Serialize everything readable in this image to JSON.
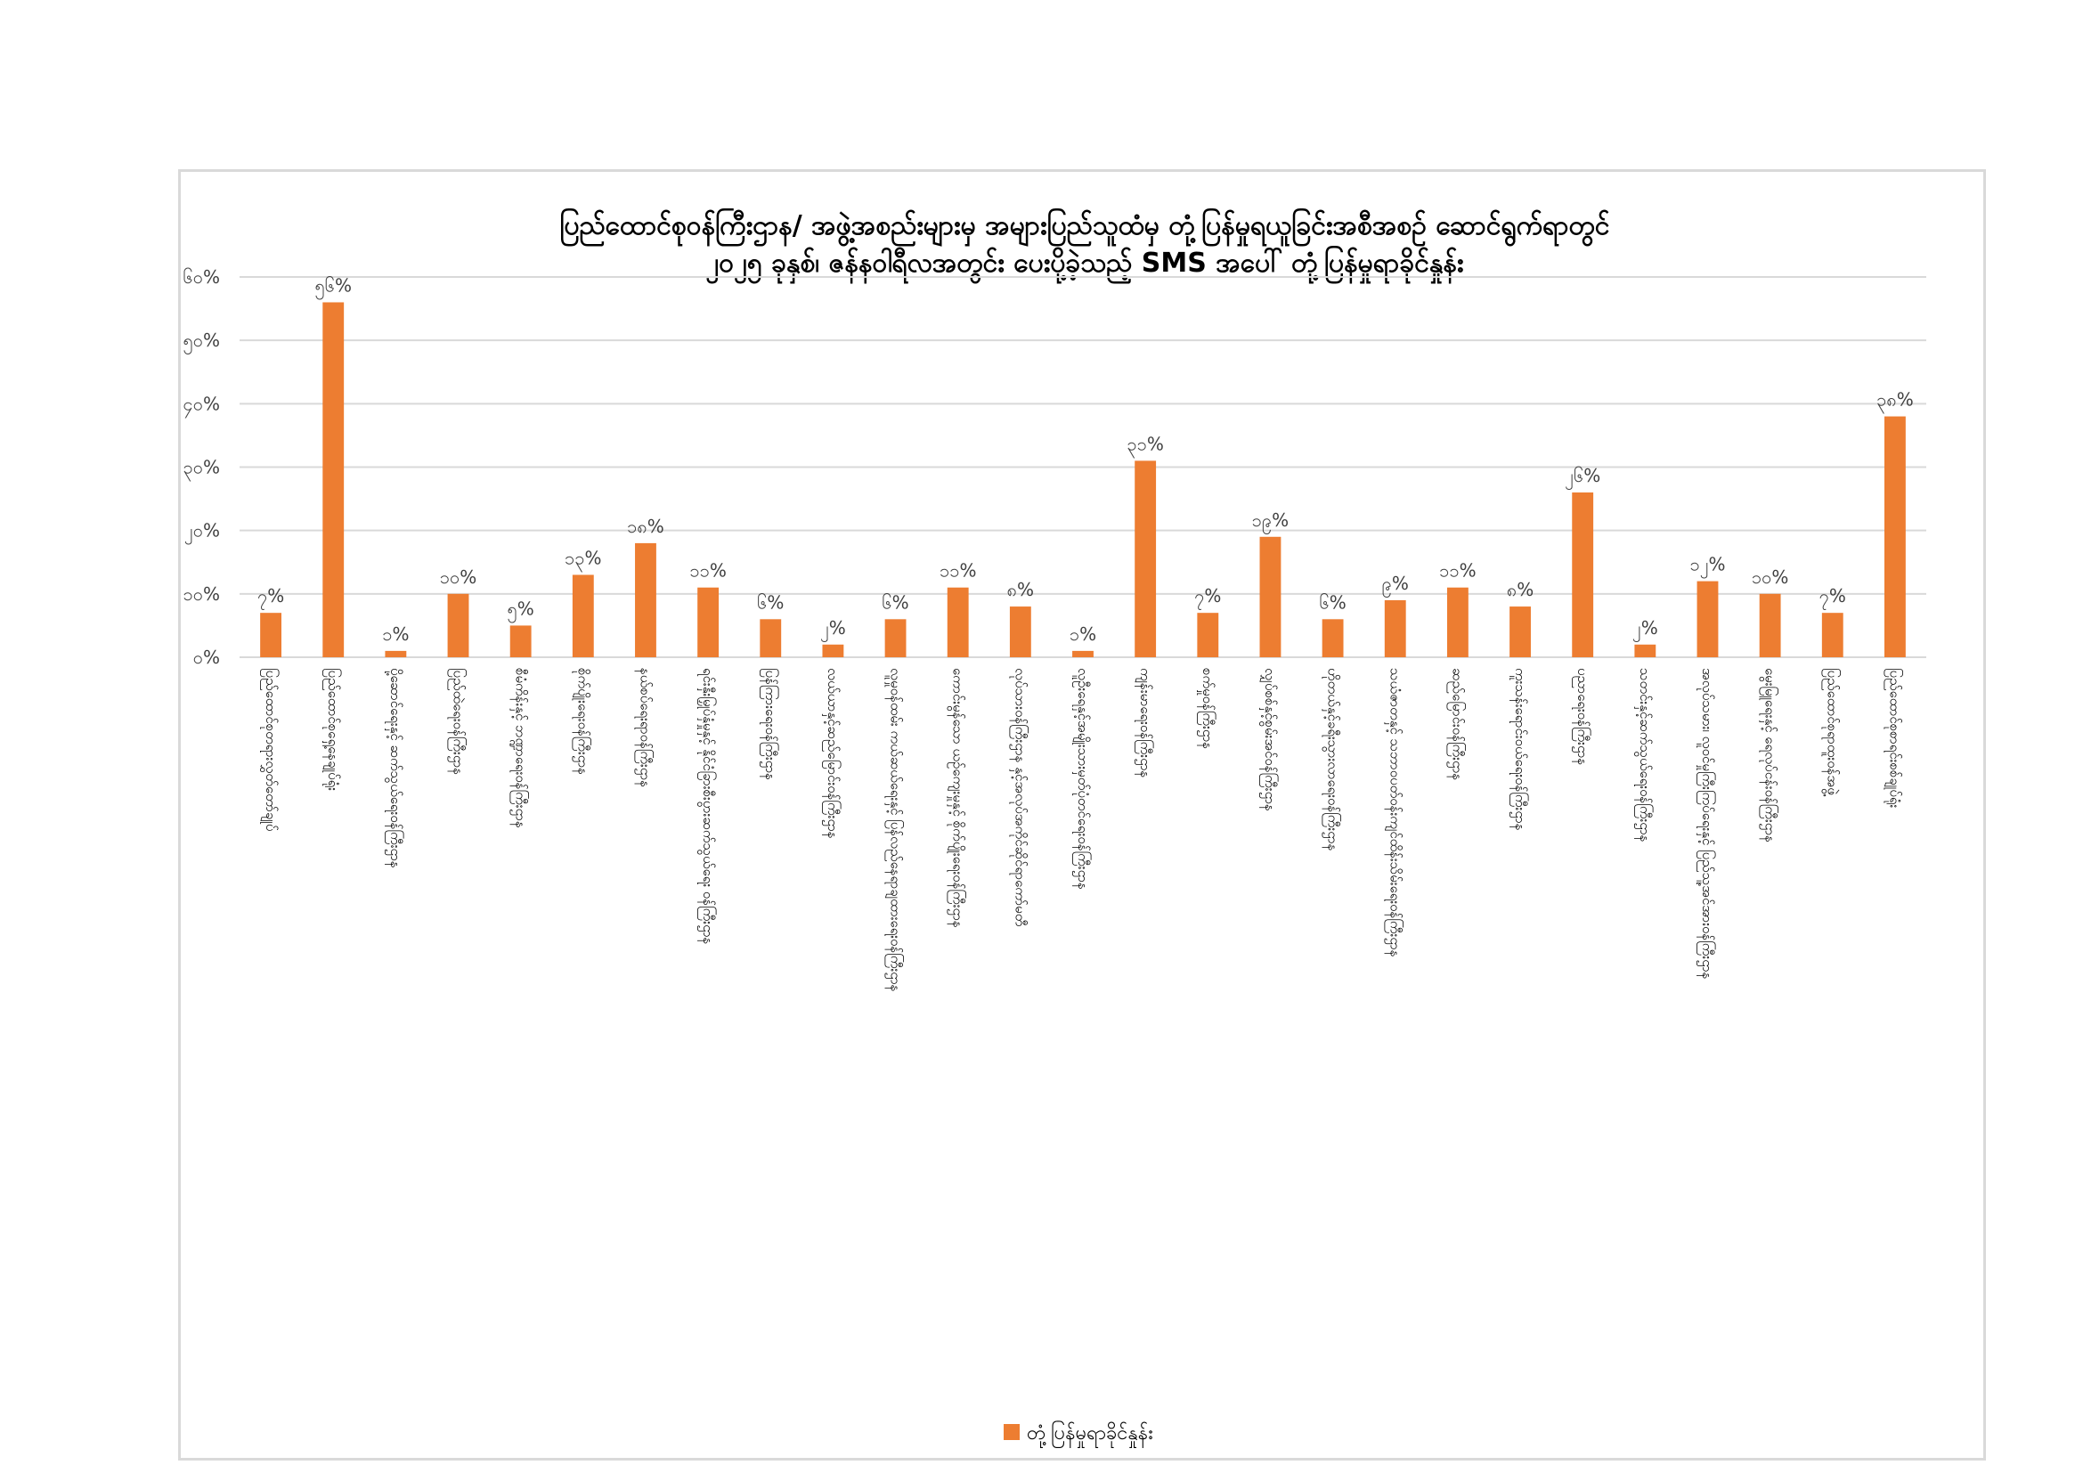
{
  "chart_data": {
    "type": "bar",
    "title": "ပြည်ထောင်စုဝန်ကြီးဌာန/ အဖွဲ့အစည်းများမှ အများပြည်သူထံမှ တုံ့ပြန်မှုရယူခြင်းအစီအစဉ် ဆောင်ရွက်ရာတွင် ၂၀၂၅ ခုနှစ်၊ ဇန်နဝါရီလအတွင်း ပေးပို့ခဲ့သည့် SMS အပေါ် တုံ့ပြန်မှုရာခိုင်နှုန်း",
    "title_lines": [
      "ပြည်ထောင်စုဝန်ကြီးဌာန/ အဖွဲ့အစည်းများမှ အများပြည်သူထံမှ တုံ့ပြန်မှုရယူခြင်းအစီအစဉ် ဆောင်ရွက်ရာတွင်",
      "၂၀၂၅ ခုနှစ်၊ ဇန်နဝါရီလအတွင်း ပေးပို့ခဲ့သည့် SMS အပေါ် တုံ့ပြန်မှုရာခိုင်နှုန်း"
    ],
    "xlabel": "",
    "ylabel": "",
    "ylim": [
      0,
      60
    ],
    "yticks": [
      0,
      10,
      20,
      30,
      40,
      50,
      60
    ],
    "ytick_labels": [
      "၀%",
      "၁၀%",
      "၂၀%",
      "၃၀%",
      "၄၀%",
      "၅၀%",
      "၆၀%"
    ],
    "grid": true,
    "legend_position": "bottom",
    "bar_color": "#ED7D31",
    "series": [
      {
        "name": "တုံ့ပြန်မှုရာခိုင်နှုန်း",
        "values": [
          7,
          56,
          1,
          10,
          5,
          13,
          18,
          11,
          6,
          2,
          6,
          11,
          8,
          1,
          31,
          7,
          19,
          6,
          9,
          11,
          8,
          26,
          2,
          12,
          10,
          7,
          38
        ],
        "labels": [
          "၇%",
          "၅၆%",
          "၁%",
          "၁၀%",
          "၅%",
          "၁၃%",
          "၁၈%",
          "၁၁%",
          "၆%",
          "၂%",
          "၆%",
          "၁၁%",
          "၈%",
          "၁%",
          "၃၁%",
          "၇%",
          "၁၉%",
          "၆%",
          "၉%",
          "၁၁%",
          "၈%",
          "၂၆%",
          "၂%",
          "၁၂%",
          "၁၀%",
          "၇%",
          "၃၈%"
        ]
      }
    ],
    "categories": [
      [
        "ပြည်ထောင်စုတရားလွှတ်တော်ချုပ်"
      ],
      [
        "ပြည်ထောင်စုရှေ့နေချုပ်ရုံး"
      ],
      [
        "ပို့ဆောင်ရေးနှင့် ဆက်သွယ်ရေးဝန်ကြီးဌာန"
      ],
      [
        "ပြည်ထဲရေးဝန်ကြီးဌာန"
      ],
      [
        "စီမံကိန်းနှင့် ဘဏ္ဍာရေးဝန်ကြီးဌာန"
      ],
      [
        "စိုက်ပျိုးရေးဝန်ကြီးဌာန"
      ],
      [
        "နယ်စပ်ရေးရာဝန်ကြီးဌာန"
      ],
      [
        "ရင်းနှီးမြှုပ်နှံမှုနှင့် နိုင်ငံခြားစီးပွားဆက်သွယ်ရေး ဝန်ကြီးဌာန"
      ],
      [
        "ပြန်ကြားရေးဝန်ကြီးဌာန"
      ],
      [
        "လယ်ယာနှင့်ဆည်မြောင်းဝန်ကြီးဌာန"
      ],
      [
        "လူမှုဝန်ထမ်း ကယ်ဆယ်ရေးနှင့် ပြန်လည်နေရာချထားရေးဝန်ကြီးဌာန"
      ],
      [
        "ကောင်းမွန်သော ယဉ်ကျေးမှုနှင့် စိုက်ပျိုးရေးဝန်ကြီးဌာန"
      ],
      [
        "လုပ်သားဝန်ကြီးဌာန နှင့်အလုပ်အကိုင်ဆိုင်ရာကော်မတီ"
      ],
      [
        "လူဦးရေနှင့်အမျိုးသားမှတ်ပုံတင်ရေးဝန်ကြီးဌာန"
      ],
      [
        "ကျန်းမာရေးဝန်ကြီးဌာန"
      ],
      [
        "စက်မှုဝန်ကြီးဌာန"
      ],
      [
        "လျှပ်စစ်နှင့်စွမ်းအင်ဝန်ကြီးဌာန"
      ],
      [
        "ဟိုတယ်နှင့်ခရီးသွားလာရေးဝန်ကြီးဌာန"
      ],
      [
        "သယံဇာတနှင့် သဘာဝပတ်ဝန်းကျင်ထိန်းသိမ်းရေးဝန်ကြီးဌာန"
      ],
      [
        "ဆည်မြောင်းဝန်ကြီးဌာန"
      ],
      [
        "ကူးသန်းရောင်းဝယ်ရေးဝန်ကြီးဌာန"
      ],
      [
        "ပညာရေးဝန်ကြီးဌာန"
      ],
      [
        "သတင်းနှင့်ဆက်သွယ်ရေးဝန်ကြီးဌာန"
      ],
      [
        "အလုပ်သမား၊ လူဝင်မှုကြီးကြပ်ရေးနှင့် ပြည်သူ့အင်အားဝန်ကြီးဌာန"
      ],
      [
        "မွေးမြူရေးနှင့် ရေလုပ်ငန်းဝန်ကြီးဌာန"
      ],
      [
        "ပြည်ထောင်စုရာထူးဝန်အဖွဲ့"
      ],
      [
        "ပြည်ထောင်စုစာရင်းစစ်ချုပ်ရုံး"
      ]
    ]
  }
}
